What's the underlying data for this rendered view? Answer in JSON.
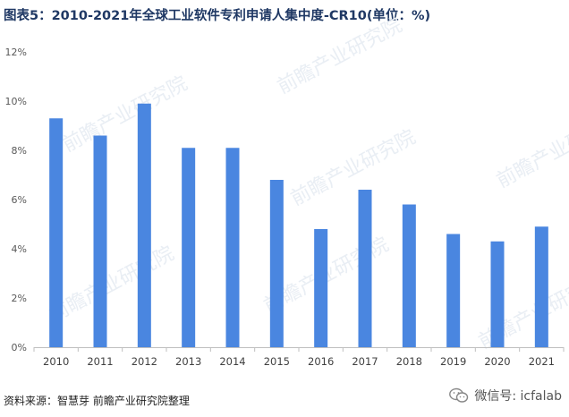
{
  "title": "图表5：2010-2021年全球工业软件专利申请人集中度-CR10(单位：%)",
  "source": "资料来源：智慧芽 前瞻产业研究院整理",
  "watermark_text": "前瞻产业研究院",
  "wechat": {
    "label": "微信号: icfalab",
    "icon": "wechat-icon"
  },
  "colors": {
    "bar": "#4a86e0",
    "axis": "#bfbfbf",
    "tick_text": "#595959",
    "title": "#1f3864"
  },
  "chart_data": {
    "type": "bar",
    "categories": [
      "2010",
      "2011",
      "2012",
      "2013",
      "2014",
      "2015",
      "2016",
      "2017",
      "2018",
      "2019",
      "2020",
      "2021"
    ],
    "values": [
      9.3,
      8.6,
      9.9,
      8.1,
      8.1,
      6.8,
      4.8,
      6.4,
      5.8,
      4.6,
      4.3,
      4.9
    ],
    "ylim": [
      0,
      12
    ],
    "yticks": [
      "0%",
      "2%",
      "4%",
      "6%",
      "8%",
      "10%",
      "12%"
    ],
    "xlabel": "",
    "ylabel": "",
    "grid": false
  }
}
